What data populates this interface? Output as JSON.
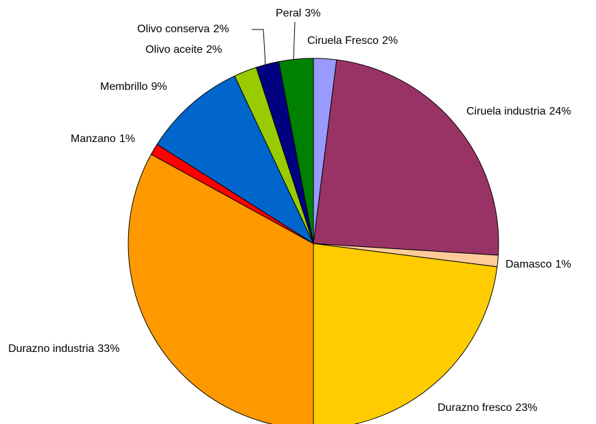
{
  "chart_data": {
    "type": "pie",
    "categories": [
      "Ciruela Fresco",
      "Ciruela industria",
      "Damasco",
      "Durazno fresco",
      "Durazno industria",
      "Manzano",
      "Membrillo",
      "Olivo aceite",
      "Olivo conserva",
      "Peral"
    ],
    "values": [
      2,
      24,
      1,
      23,
      33,
      1,
      9,
      2,
      2,
      3
    ],
    "value_labels": [
      "2%",
      "24%",
      "1%",
      "23%",
      "33%",
      "1%",
      "9%",
      "2%",
      "2%",
      "3%"
    ],
    "colors": [
      "#9999ff",
      "#993366",
      "#ffcc99",
      "#ffcc00",
      "#ff9900",
      "#ff0000",
      "#0066cc",
      "#99cc00",
      "#000080",
      "#008000"
    ]
  }
}
